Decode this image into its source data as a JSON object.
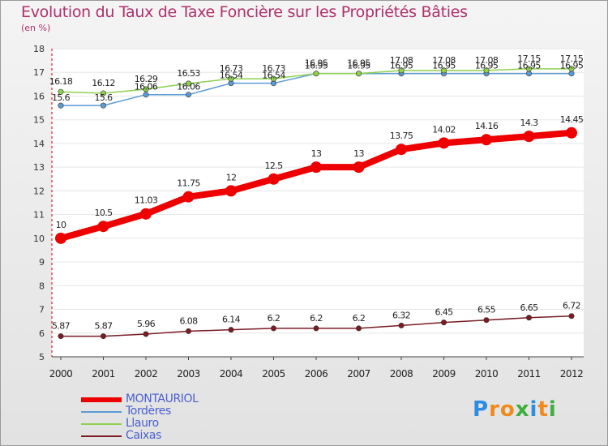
{
  "title": "Evolution du Taux de Taxe Foncière sur les Propriétés Bâties",
  "subtitle": "(en %)",
  "logo": {
    "letters": [
      "P",
      "r",
      "o",
      "x",
      "i",
      "t",
      "i"
    ],
    "colors": [
      "#2e8de0",
      "#f08a1c",
      "#f08a1c",
      "#3fae3f",
      "#2e8de0",
      "#f08a1c",
      "#3fae3f"
    ]
  },
  "chart_data": {
    "type": "line",
    "categories": [
      "2000",
      "2001",
      "2002",
      "2003",
      "2004",
      "2005",
      "2006",
      "2007",
      "2008",
      "2009",
      "2010",
      "2011",
      "2012"
    ],
    "ylim": [
      5,
      18
    ],
    "yticks": [
      "5",
      "6",
      "7",
      "8",
      "9",
      "10",
      "11",
      "12",
      "13",
      "14",
      "15",
      "16",
      "17",
      "18"
    ],
    "series": [
      {
        "name": "MONTAURIOL",
        "color": "#ee0000",
        "values": [
          10,
          10.5,
          11.03,
          11.75,
          12,
          12.5,
          13,
          13,
          13.75,
          14.02,
          14.16,
          14.3,
          14.45
        ],
        "labels": [
          "10",
          "10.5",
          "11.03",
          "11.75",
          "12",
          "12.5",
          "13",
          "13",
          "13.75",
          "14.02",
          "14.16",
          "14.3",
          "14.45"
        ]
      },
      {
        "name": "Tordères",
        "color": "#5b9bd5",
        "values": [
          15.6,
          15.6,
          16.06,
          16.06,
          16.54,
          16.54,
          16.95,
          16.95,
          16.95,
          16.95,
          16.95,
          16.95,
          16.95
        ],
        "labels": [
          "15.6",
          "15.6",
          "16.06",
          "16.06",
          "16.54",
          "16.54",
          "16.95",
          "16.95",
          "16.95",
          "16.95",
          "16.95",
          "16.95",
          "16.95"
        ]
      },
      {
        "name": "Llauro",
        "color": "#8fd14f",
        "values": [
          16.18,
          16.12,
          16.29,
          16.53,
          16.73,
          16.73,
          16.95,
          16.95,
          17.08,
          17.08,
          17.08,
          17.15,
          17.15
        ],
        "labels": [
          "16.18",
          "16.12",
          "16.29",
          "16.53",
          "16.73",
          "16.73",
          "16.95",
          "16.95",
          "17.08",
          "17.08",
          "17.08",
          "17.15",
          "17.15"
        ]
      },
      {
        "name": "Caixas",
        "color": "#7a1c24",
        "values": [
          5.87,
          5.87,
          5.96,
          6.08,
          6.14,
          6.2,
          6.2,
          6.2,
          6.32,
          6.45,
          6.55,
          6.65,
          6.72
        ],
        "labels": [
          "5.87",
          "5.87",
          "5.96",
          "6.08",
          "6.14",
          "6.2",
          "6.2",
          "6.2",
          "6.32",
          "6.45",
          "6.55",
          "6.65",
          "6.72"
        ]
      }
    ],
    "legend_position": "bottom-left"
  }
}
